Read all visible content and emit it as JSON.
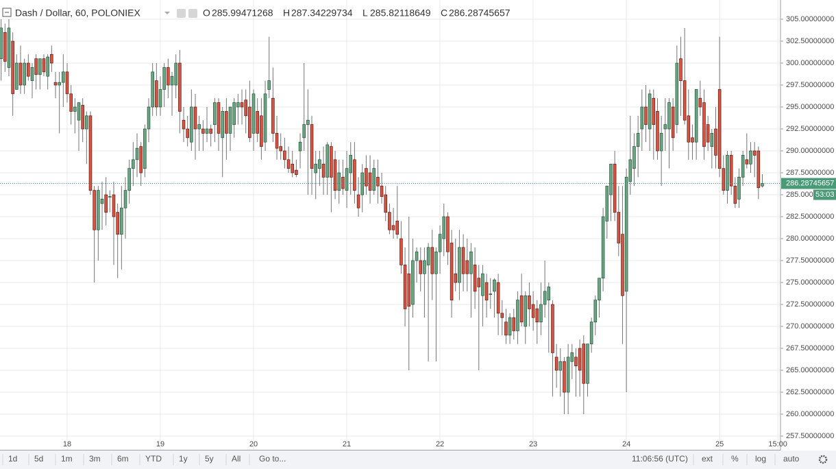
{
  "header": {
    "symbol": "Dash / Dollar, 60, POLONIEX",
    "o_label": "O",
    "open": "285.99471268",
    "h_label": "H",
    "high": "287.34229734",
    "l_label": "L",
    "low": "285.82118649",
    "c_label": "C",
    "close": "286.28745657"
  },
  "toolbar": {
    "ranges": [
      "1d",
      "5d",
      "1m",
      "3m",
      "6m",
      "YTD",
      "1y",
      "5y",
      "All"
    ],
    "goto": "Go to...",
    "clock": "11:06:56 (UTC)",
    "options": [
      "ext",
      "%",
      "log",
      "auto"
    ]
  },
  "chart_data": {
    "type": "candlestick",
    "up_color": "#6ba583",
    "up_border": "#225437",
    "down_color": "#d75442",
    "down_border": "#5b1a13",
    "wick_color": "#737375",
    "grid": true,
    "countdown": "53:03",
    "xlim": [
      -0.29,
      200.5
    ],
    "ylim": [
      255.94,
      307.19
    ],
    "xticks": [
      {
        "value": 17,
        "label": "18"
      },
      {
        "value": 41,
        "label": "19"
      },
      {
        "value": 65,
        "label": "20"
      },
      {
        "value": 89,
        "label": "21"
      },
      {
        "value": 113,
        "label": "22"
      },
      {
        "value": 137,
        "label": "23"
      },
      {
        "value": 161,
        "label": "24"
      },
      {
        "value": 185,
        "label": "25"
      },
      {
        "value": 200,
        "label": "15:00"
      }
    ],
    "yticks": [
      {
        "value": 257.5,
        "label": "257.50000000"
      },
      {
        "value": 260,
        "label": "260.00000000"
      },
      {
        "value": 262.5,
        "label": "262.50000000"
      },
      {
        "value": 265,
        "label": "265.00000000"
      },
      {
        "value": 267.5,
        "label": "267.50000000"
      },
      {
        "value": 270,
        "label": "270.00000000"
      },
      {
        "value": 272.5,
        "label": "272.50000000"
      },
      {
        "value": 275,
        "label": "275.00000000"
      },
      {
        "value": 277.5,
        "label": "277.50000000"
      },
      {
        "value": 280,
        "label": "280.00000000"
      },
      {
        "value": 282.5,
        "label": "282.50000000"
      },
      {
        "value": 285,
        "label": "285.00000000"
      },
      {
        "value": 287.5,
        "label": "287.50000000"
      },
      {
        "value": 290,
        "label": "290.00000000"
      },
      {
        "value": 292.5,
        "label": "292.50000000"
      },
      {
        "value": 295,
        "label": "295.00000000"
      },
      {
        "value": 297.5,
        "label": "297.50000000"
      },
      {
        "value": 300,
        "label": "300.00000000"
      },
      {
        "value": 302.5,
        "label": "302.50000000"
      },
      {
        "value": 305,
        "label": "305.00000000"
      }
    ],
    "ohlc": [
      [
        300.5,
        305,
        298,
        304
      ],
      [
        303.5,
        304.5,
        299,
        300.2
      ],
      [
        299.5,
        305,
        298.5,
        304
      ],
      [
        302.5,
        303.5,
        294,
        296.5
      ],
      [
        297,
        301,
        297,
        300
      ],
      [
        300,
        302,
        296.5,
        297.5
      ],
      [
        297.5,
        300.5,
        296.5,
        300
      ],
      [
        300,
        301,
        298,
        298.5
      ],
      [
        298,
        300,
        296,
        299.5
      ],
      [
        300.5,
        301,
        297,
        298.7
      ],
      [
        298.7,
        300.5,
        297,
        300.5
      ],
      [
        300.5,
        301,
        298.5,
        299
      ],
      [
        298.5,
        301,
        297,
        300.7
      ],
      [
        301,
        302,
        299,
        300
      ],
      [
        297.8,
        299,
        296,
        297.5
      ],
      [
        297.5,
        299,
        292,
        297.8
      ],
      [
        297.8,
        301,
        295,
        299
      ],
      [
        299,
        300,
        295.5,
        296.5
      ],
      [
        296.5,
        297.5,
        293,
        294.5
      ],
      [
        294.5,
        296,
        292,
        295
      ],
      [
        293.5,
        295.5,
        290,
        295.5
      ],
      [
        295.2,
        296,
        291,
        292.5
      ],
      [
        292.5,
        294.5,
        288.5,
        294
      ],
      [
        294,
        294.5,
        285,
        285.5
      ],
      [
        285.5,
        286,
        275,
        281
      ],
      [
        281,
        286,
        277.5,
        285.5
      ],
      [
        284,
        286.5,
        281,
        284.5
      ],
      [
        285,
        287,
        281.5,
        283
      ],
      [
        284.8,
        285.5,
        283,
        284.8
      ],
      [
        285,
        286.5,
        277,
        282.5
      ],
      [
        283,
        284,
        275.5,
        280.5
      ],
      [
        280.5,
        286,
        276.5,
        283.5
      ],
      [
        283.5,
        287,
        280,
        285.5
      ],
      [
        285.5,
        289,
        284,
        288
      ],
      [
        288,
        291,
        286,
        289
      ],
      [
        289,
        292,
        287,
        290.3
      ],
      [
        290.5,
        291,
        286,
        287.5
      ],
      [
        288,
        293,
        287,
        292.5
      ],
      [
        292.5,
        296,
        291,
        295
      ],
      [
        295,
        300,
        294,
        299
      ],
      [
        298,
        300,
        294,
        295
      ],
      [
        295,
        298.5,
        294,
        297
      ],
      [
        297,
        300,
        295,
        299.5
      ],
      [
        299.5,
        300.5,
        296,
        297.5
      ],
      [
        297.5,
        299,
        294,
        298.5
      ],
      [
        297.5,
        301,
        296,
        300
      ],
      [
        300,
        301.5,
        292,
        294.5
      ],
      [
        293.5,
        295,
        291,
        292.5
      ],
      [
        292.5,
        294,
        290.5,
        291.5
      ],
      [
        291,
        297,
        290,
        295
      ],
      [
        295,
        296.5,
        289,
        292.5
      ],
      [
        292.5,
        294,
        290,
        293
      ],
      [
        292.5,
        293.5,
        290,
        292
      ],
      [
        292,
        295,
        291,
        292.5
      ],
      [
        292.5,
        293,
        290.5,
        292
      ],
      [
        293,
        296,
        291,
        295.5
      ],
      [
        295.5,
        296,
        290,
        292
      ],
      [
        291.5,
        295,
        287,
        294.5
      ],
      [
        294.5,
        296,
        289,
        292
      ],
      [
        292,
        295,
        290,
        295
      ],
      [
        293,
        296,
        291.5,
        295.5
      ],
      [
        295,
        296.5,
        293,
        295.5
      ],
      [
        295.5,
        297,
        293,
        295
      ],
      [
        295.8,
        297,
        292,
        294
      ],
      [
        295,
        298,
        291,
        291.5
      ],
      [
        292,
        297,
        290,
        296.5
      ],
      [
        294.5,
        296,
        291,
        292
      ],
      [
        294,
        296,
        289,
        290.5
      ],
      [
        291,
        298,
        290,
        296.5
      ],
      [
        297,
        303,
        296,
        298
      ],
      [
        296,
        299.5,
        291,
        292
      ],
      [
        292,
        294,
        289,
        290.3
      ],
      [
        290.5,
        292,
        289,
        290
      ],
      [
        290,
        291.5,
        288,
        289
      ],
      [
        289,
        290.5,
        287.5,
        288
      ],
      [
        288.5,
        290,
        287,
        287.5
      ],
      [
        287.8,
        289,
        287,
        287.3
      ],
      [
        290,
        292,
        288,
        291
      ],
      [
        291.5,
        300,
        290,
        293
      ],
      [
        293,
        297,
        285,
        293.5
      ],
      [
        293,
        294,
        285,
        288
      ],
      [
        287.5,
        290,
        284.5,
        288.5
      ],
      [
        288,
        290,
        286,
        289
      ],
      [
        288.5,
        290.5,
        285,
        287
      ],
      [
        287,
        291,
        285,
        290.7
      ],
      [
        290.5,
        291,
        283,
        287
      ],
      [
        289,
        290,
        284.5,
        285.5
      ],
      [
        285.5,
        289,
        284,
        287.5
      ],
      [
        287,
        289,
        285,
        285.7
      ],
      [
        285.5,
        290,
        283.5,
        288
      ],
      [
        287.5,
        291,
        285,
        289.5
      ],
      [
        289,
        291,
        284,
        285.5
      ],
      [
        285,
        287,
        282.5,
        283.5
      ],
      [
        285,
        288.5,
        283,
        287.5
      ],
      [
        288,
        289.5,
        285,
        286
      ],
      [
        287.5,
        289.5,
        284,
        285.5
      ],
      [
        285.5,
        289,
        285,
        288
      ],
      [
        287,
        289,
        284,
        286
      ],
      [
        286,
        287.5,
        284,
        284.8
      ],
      [
        285,
        286,
        282,
        283
      ],
      [
        283,
        284,
        280.5,
        281
      ],
      [
        281.5,
        283.5,
        280,
        281
      ],
      [
        282,
        286,
        280,
        280.5
      ],
      [
        280,
        282,
        276,
        277
      ],
      [
        277,
        279,
        270,
        272
      ],
      [
        276,
        282.5,
        265,
        272.3
      ],
      [
        272.5,
        280,
        271,
        277.5
      ],
      [
        277.5,
        279,
        275,
        278.5
      ],
      [
        277.5,
        279,
        274,
        276
      ],
      [
        276,
        279,
        271,
        277.5
      ],
      [
        277,
        279.5,
        266,
        279
      ],
      [
        279,
        281,
        273,
        276
      ],
      [
        276,
        279,
        266,
        278.5
      ],
      [
        278.5,
        281.5,
        276,
        280.5
      ],
      [
        280,
        284,
        278,
        282.5
      ],
      [
        282.5,
        283,
        277,
        278.5
      ],
      [
        279.5,
        281,
        271,
        273
      ],
      [
        276,
        280,
        274,
        275
      ],
      [
        275,
        281,
        273,
        279
      ],
      [
        279,
        280.5,
        274,
        276
      ],
      [
        277.5,
        280,
        274,
        276
      ],
      [
        276,
        279.5,
        271,
        278.5
      ],
      [
        277,
        279,
        272,
        274
      ],
      [
        275.5,
        277,
        265,
        274.5
      ],
      [
        273.5,
        277,
        270,
        276
      ],
      [
        275,
        276,
        271,
        273
      ],
      [
        273.7,
        275.5,
        272,
        273.7
      ],
      [
        274,
        275.5,
        271,
        275.3
      ],
      [
        275,
        276,
        269,
        271.5
      ],
      [
        271.5,
        273,
        269,
        271
      ],
      [
        270.5,
        272,
        268,
        269
      ],
      [
        269,
        271.5,
        268,
        271
      ],
      [
        271,
        272,
        268.5,
        269.5
      ],
      [
        269.5,
        274,
        268,
        273
      ],
      [
        273.5,
        276,
        270,
        270.5
      ],
      [
        270,
        274,
        268,
        273.5
      ],
      [
        273.5,
        275,
        270,
        272
      ],
      [
        272.5,
        274,
        269.5,
        271
      ],
      [
        272,
        273,
        268,
        270.5
      ],
      [
        270.5,
        275,
        269,
        272.5
      ],
      [
        272.5,
        277.5,
        271,
        274
      ],
      [
        273,
        275,
        267,
        274.5
      ],
      [
        272.5,
        273,
        262,
        267
      ],
      [
        266.5,
        268,
        263,
        265
      ],
      [
        265,
        267.5,
        262,
        266
      ],
      [
        266,
        266.5,
        260,
        262.5
      ],
      [
        262.5,
        268,
        260,
        266.5
      ],
      [
        266,
        268,
        264,
        267
      ],
      [
        266.5,
        267.5,
        262,
        265.5
      ],
      [
        267.5,
        268.5,
        262,
        265
      ],
      [
        268,
        269,
        260,
        263.5
      ],
      [
        263.5,
        268,
        262,
        268
      ],
      [
        268,
        271,
        267,
        270.5
      ],
      [
        270.5,
        273.5,
        269,
        273
      ],
      [
        273,
        275.5,
        271,
        275.5
      ],
      [
        275.5,
        283.5,
        274,
        282.5
      ],
      [
        282,
        286,
        280,
        286
      ],
      [
        285,
        288.5,
        282,
        288.5
      ],
      [
        288.5,
        290,
        282,
        283
      ],
      [
        283,
        286,
        278,
        279.5
      ],
      [
        280.5,
        286,
        268,
        273.5
      ],
      [
        274,
        288,
        262.5,
        287
      ],
      [
        286.5,
        294,
        285,
        289
      ],
      [
        288,
        292,
        286,
        290.5
      ],
      [
        290.5,
        294,
        287,
        292
      ],
      [
        292.5,
        297,
        290,
        295
      ],
      [
        295,
        297.5,
        291,
        293
      ],
      [
        292.5,
        297,
        290,
        296.5
      ],
      [
        296,
        297,
        289,
        293
      ],
      [
        294.5,
        296,
        289,
        290
      ],
      [
        290,
        294,
        286,
        292
      ],
      [
        292.5,
        296,
        290,
        293
      ],
      [
        292.5,
        296,
        288,
        295.5
      ],
      [
        295,
        296,
        290,
        291.5
      ],
      [
        293,
        302,
        292,
        300
      ],
      [
        300.5,
        303,
        294,
        298
      ],
      [
        298,
        304,
        293,
        293.5
      ],
      [
        294,
        297,
        289,
        291
      ],
      [
        291.5,
        293,
        289,
        291
      ],
      [
        291,
        297,
        289,
        297
      ],
      [
        296,
        298,
        294,
        295
      ],
      [
        295.5,
        297,
        289,
        290.5
      ],
      [
        293,
        294,
        290,
        291
      ],
      [
        290.5,
        292.5,
        288,
        292
      ],
      [
        292.5,
        295,
        288,
        289.5
      ],
      [
        297,
        303,
        287,
        288
      ],
      [
        288,
        289.5,
        285,
        285.5
      ],
      [
        285.5,
        290,
        284,
        289.5
      ],
      [
        289.5,
        290,
        285,
        286
      ],
      [
        286,
        287,
        283.5,
        284
      ],
      [
        284.5,
        288,
        283.5,
        287
      ],
      [
        287,
        290,
        286,
        289.5
      ],
      [
        289,
        292,
        288,
        288.5
      ],
      [
        288.5,
        291,
        287.5,
        290
      ],
      [
        290,
        291,
        287,
        289.5
      ],
      [
        290,
        290.5,
        284.5,
        285.8
      ],
      [
        285.99471268,
        287.34229734,
        285.82118649,
        286.28745657
      ]
    ]
  }
}
